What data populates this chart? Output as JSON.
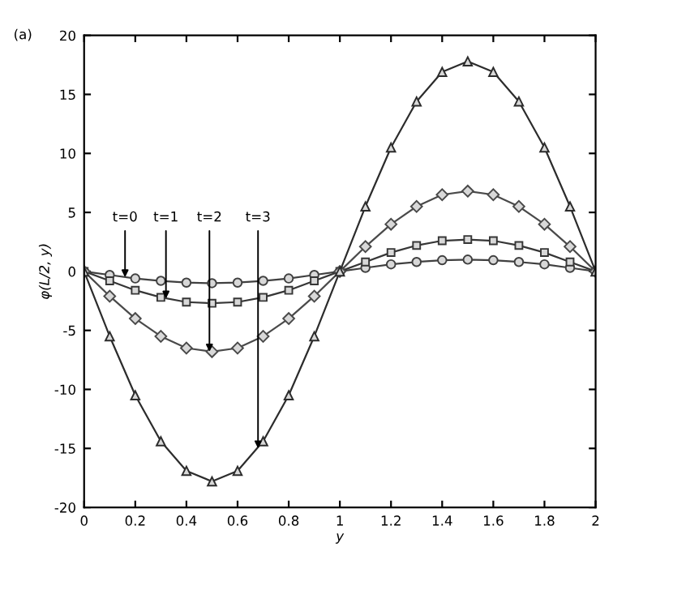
{
  "chart_data": {
    "type": "line",
    "xlabel": "y",
    "ylabel": "φ(L/2, y)",
    "x": [
      0,
      0.1,
      0.2,
      0.3,
      0.4,
      0.5,
      0.6,
      0.7,
      0.8,
      0.9,
      1.0,
      1.1,
      1.2,
      1.3,
      1.4,
      1.5,
      1.6,
      1.7,
      1.8,
      1.9,
      2.0
    ],
    "series": [
      {
        "color": "#404040",
        "marker": "circle",
        "values": [
          0,
          -0.3,
          -0.6,
          -0.8,
          -0.95,
          -1.0,
          -0.95,
          -0.8,
          -0.6,
          -0.3,
          0,
          0.3,
          0.6,
          0.8,
          0.95,
          1.0,
          0.95,
          0.8,
          0.6,
          0.3,
          0
        ]
      },
      {
        "color": "#363636",
        "marker": "square",
        "values": [
          0,
          -0.8,
          -1.6,
          -2.2,
          -2.6,
          -2.7,
          -2.6,
          -2.2,
          -1.6,
          -0.8,
          0,
          0.8,
          1.6,
          2.2,
          2.6,
          2.7,
          2.6,
          2.2,
          1.6,
          0.8,
          0
        ]
      },
      {
        "color": "#4a4a4a",
        "marker": "diamond",
        "values": [
          0,
          -2.1,
          -4.0,
          -5.5,
          -6.5,
          -6.8,
          -6.5,
          -5.5,
          -4.0,
          -2.1,
          0,
          2.1,
          4.0,
          5.5,
          6.5,
          6.8,
          6.5,
          5.5,
          4.0,
          2.1,
          0
        ]
      },
      {
        "color": "#2c2c2c",
        "marker": "triangle",
        "values": [
          0,
          -5.5,
          -10.5,
          -14.4,
          -16.9,
          -17.8,
          -16.9,
          -14.4,
          -10.5,
          -5.5,
          0,
          5.5,
          10.5,
          14.4,
          16.9,
          17.8,
          16.9,
          14.4,
          10.5,
          5.5,
          0
        ]
      }
    ],
    "xlim": [
      0,
      2
    ],
    "ylim": [
      -20,
      20
    ],
    "xticks": [
      0,
      0.2,
      0.4,
      0.6,
      0.8,
      1,
      1.2,
      1.4,
      1.6,
      1.8,
      2
    ],
    "yticks": [
      -20,
      -15,
      -10,
      -5,
      0,
      5,
      10,
      15,
      20
    ],
    "grid": false,
    "legend": false,
    "line_style": "solid",
    "annotations": [
      "(a)",
      {
        "text": "t=0",
        "x": 0.16,
        "y": -0.5
      },
      {
        "text": "t=1",
        "x": 0.32,
        "y": -2.3
      },
      {
        "text": "t=2",
        "x": 0.49,
        "y": -6.8
      },
      {
        "text": "t=3",
        "x": 0.68,
        "y": -15
      }
    ]
  }
}
